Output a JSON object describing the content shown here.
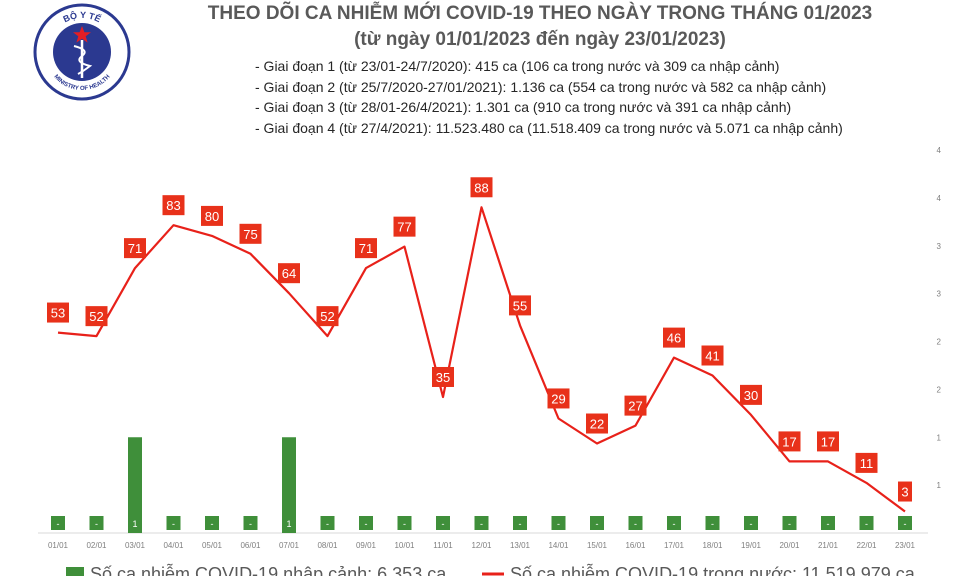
{
  "header": {
    "title_line1": "THEO DÕI CA NHIỄM MỚI COVID-19 THEO NGÀY TRONG THÁNG 01/2023",
    "title_line2": "(từ ngày 01/01/2023 đến ngày 23/01/2023)",
    "notes": [
      "- Giai đoạn 1 (từ 23/01-24/7/2020): 415 ca (106 ca trong nước và 309 ca nhập cảnh)",
      "- Giai đoạn 2 (từ 25/7/2020-27/01/2021): 1.136 ca (554 ca trong nước và 582 ca nhập cảnh)",
      "- Giai đoạn 3 (từ 28/01-26/4/2021): 1.301 ca (910 ca trong nước và 391 ca nhập cảnh)",
      "- Giai đoạn 4 (từ 27/4/2021): 11.523.480 ca (11.518.409 ca trong nước và 5.071 ca nhập cảnh)"
    ]
  },
  "logo": {
    "name": "ministry-of-health-logo",
    "text_top": "BỘ Y TẾ",
    "text_bottom": "MINISTRY OF HEALTH"
  },
  "colors": {
    "bar": "#3f8f3a",
    "line": "#e8211a",
    "label_bg": "#e8311a",
    "title": "#595959",
    "axis_text": "#7f7f7f",
    "logo": "#2b3990",
    "logo_star": "#e31e24"
  },
  "chart_data": {
    "type": "bar+line",
    "categories": [
      "01/01",
      "02/01",
      "03/01",
      "04/01",
      "05/01",
      "06/01",
      "07/01",
      "08/01",
      "09/01",
      "10/01",
      "11/01",
      "12/01",
      "13/01",
      "14/01",
      "15/01",
      "16/01",
      "17/01",
      "18/01",
      "19/01",
      "20/01",
      "21/01",
      "22/01",
      "23/01"
    ],
    "series": [
      {
        "name": "Số ca nhiễm COVID-19 nhập cảnh: 6.353 ca",
        "chart": "bar",
        "axis": "right",
        "values": [
          0,
          0,
          1,
          0,
          0,
          0,
          1,
          0,
          0,
          0,
          0,
          0,
          0,
          0,
          0,
          0,
          0,
          0,
          0,
          0,
          0,
          0,
          0
        ],
        "labels": [
          "-",
          "-",
          "1",
          "-",
          "-",
          "-",
          "1",
          "-",
          "-",
          "-",
          "-",
          "-",
          "-",
          "-",
          "-",
          "-",
          "-",
          "-",
          "-",
          "-",
          "-",
          "-",
          "-"
        ]
      },
      {
        "name": "Số ca nhiễm COVID-19 trong nước: 11.519.979 ca",
        "chart": "line",
        "axis": "left",
        "values": [
          53,
          52,
          71,
          83,
          80,
          75,
          64,
          52,
          71,
          77,
          35,
          88,
          55,
          29,
          22,
          27,
          46,
          41,
          30,
          17,
          17,
          11,
          3
        ]
      }
    ],
    "right_axis_ticks": [
      "1",
      "1",
      "2",
      "2",
      "3",
      "3",
      "4",
      "4"
    ],
    "right_axis_range": [
      0,
      4
    ],
    "left_axis_range": [
      -3,
      104
    ],
    "legend_position": "bottom"
  }
}
